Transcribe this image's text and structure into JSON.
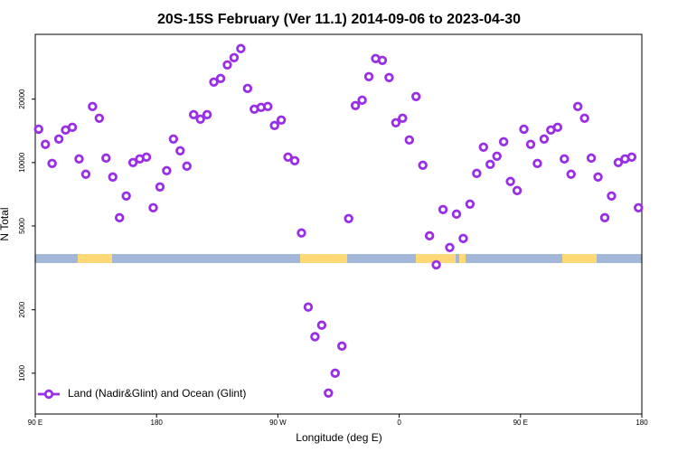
{
  "chart_data": {
    "type": "scatter",
    "title": "20S-15S February (Ver 11.1)   2014-09-06 to 2023-04-30",
    "x_label": "Longitude (deg E)",
    "y_label": "N Total",
    "log_y": true,
    "legend": "bottom-left",
    "xlim": [
      90,
      540
    ],
    "xticks": [
      {
        "value": 90,
        "label": "90 E"
      },
      180,
      {
        "value": 270,
        "label": "90 W"
      },
      {
        "value": 360,
        "label": "0"
      },
      {
        "value": 450,
        "label": "90 E"
      },
      {
        "value": 540,
        "label": "180"
      }
    ],
    "ylim": [
      640,
      40600
    ],
    "yticks": [
      1000,
      2000,
      5000,
      10000,
      20000
    ],
    "series": [
      {
        "name": "Land (Nadir&Glint) and Ocean (Glint)",
        "color": "#9a2ee6",
        "x": [
          92.5,
          97.5,
          102.5,
          107.5,
          112.5,
          117.5,
          122.5,
          127.5,
          132.5,
          137.5,
          142.5,
          147.5,
          152.5,
          157.5,
          162.5,
          167.5,
          172.5,
          177.5,
          182.5,
          187.5,
          192.5,
          197.5,
          202.5,
          207.5,
          212.5,
          217.5,
          222.5,
          227.5,
          232.5,
          237.5,
          242.5,
          247.5,
          252.5,
          257.5,
          262.5,
          267.5,
          272.5,
          277.5,
          282.5,
          287.5,
          292.5,
          297.5,
          302.5,
          307.5,
          312.5,
          317.5,
          322.5,
          327.5,
          332.5,
          337.5,
          342.5,
          347.5,
          352.5,
          357.5,
          362.5,
          367.5,
          372.5,
          377.5,
          382.5,
          387.5,
          392.5,
          397.5,
          402.5,
          407.5,
          412.5,
          417.5,
          422.5,
          427.5,
          432.5,
          437.5,
          442.5,
          447.5,
          452.5,
          457.5,
          462.5,
          467.5,
          472.5,
          477.5,
          482.5,
          487.5,
          492.5,
          497.5,
          502.5,
          507.5,
          512.5,
          517.5,
          522.5,
          527.5,
          532.5,
          537.5
        ],
        "values": [
          14400,
          12200,
          9900,
          12930,
          14270,
          14700,
          10400,
          8800,
          18450,
          16230,
          10500,
          8540,
          5470,
          6940,
          10000,
          10400,
          10610,
          6100,
          7660,
          9150,
          12930,
          11370,
          9610,
          16880,
          16070,
          16880,
          24100,
          25060,
          29080,
          31470,
          34750,
          22480,
          17920,
          18270,
          18450,
          14990,
          15910,
          10610,
          10200,
          4630,
          2060,
          1490,
          1690,
          805,
          1000,
          1345,
          5420,
          18640,
          19770,
          25570,
          31160,
          30550,
          25320,
          15450,
          16230,
          12800,
          20570,
          9710,
          4490,
          3270,
          5980,
          3950,
          5690,
          4360,
          6350,
          8880,
          11830,
          9800,
          10720,
          12550,
          8130,
          7360,
          14400,
          12200,
          9900,
          12930,
          14270,
          14700,
          10400,
          8800,
          18450,
          16230,
          10500,
          8540,
          5470,
          6940,
          10000,
          10400,
          10610,
          6100
        ]
      }
    ]
  }
}
